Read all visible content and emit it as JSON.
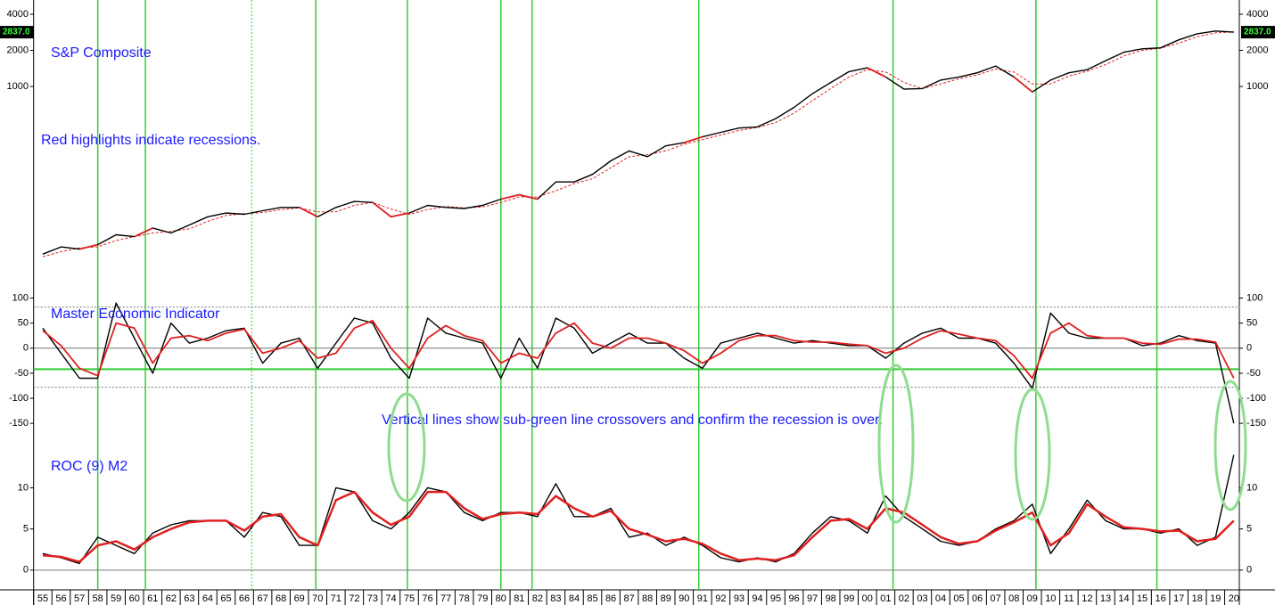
{
  "chart_data": {
    "type": "line",
    "x": [
      1955.5,
      1956.5,
      1957.5,
      1958.5,
      1959.5,
      1960.5,
      1961.5,
      1962.5,
      1963.5,
      1964.5,
      1965.5,
      1966.5,
      1967.5,
      1968.5,
      1969.5,
      1970.5,
      1971.5,
      1972.5,
      1973.5,
      1974.5,
      1975.5,
      1976.5,
      1977.5,
      1978.5,
      1979.5,
      1980.5,
      1981.5,
      1982.5,
      1983.5,
      1984.5,
      1985.5,
      1986.5,
      1987.5,
      1988.5,
      1989.5,
      1990.5,
      1991.5,
      1992.5,
      1993.5,
      1994.5,
      1995.5,
      1996.5,
      1997.5,
      1998.5,
      1999.5,
      2000.5,
      2001.5,
      2002.5,
      2003.5,
      2004.5,
      2005.5,
      2006.5,
      2007.5,
      2008.5,
      2009.5,
      2010.5,
      2011.5,
      2012.5,
      2013.5,
      2014.5,
      2015.5,
      2016.5,
      2017.5,
      2018.5,
      2019.5,
      2020.5
    ],
    "xlim": [
      1955,
      2020.8
    ],
    "xticks": [
      {
        "value": 1955,
        "label": "55"
      },
      {
        "value": 1956,
        "label": "56"
      },
      {
        "value": 1957,
        "label": "57"
      },
      {
        "value": 1958,
        "label": "58"
      },
      {
        "value": 1959,
        "label": "59"
      },
      {
        "value": 1960,
        "label": "60"
      },
      {
        "value": 1961,
        "label": "61"
      },
      {
        "value": 1962,
        "label": "62"
      },
      {
        "value": 1963,
        "label": "63"
      },
      {
        "value": 1964,
        "label": "64"
      },
      {
        "value": 1965,
        "label": "65"
      },
      {
        "value": 1966,
        "label": "66"
      },
      {
        "value": 1967,
        "label": "67"
      },
      {
        "value": 1968,
        "label": "68"
      },
      {
        "value": 1969,
        "label": "69"
      },
      {
        "value": 1970,
        "label": "70"
      },
      {
        "value": 1971,
        "label": "71"
      },
      {
        "value": 1972,
        "label": "72"
      },
      {
        "value": 1973,
        "label": "73"
      },
      {
        "value": 1974,
        "label": "74"
      },
      {
        "value": 1975,
        "label": "75"
      },
      {
        "value": 1976,
        "label": "76"
      },
      {
        "value": 1977,
        "label": "77"
      },
      {
        "value": 1978,
        "label": "78"
      },
      {
        "value": 1979,
        "label": "79"
      },
      {
        "value": 1980,
        "label": "80"
      },
      {
        "value": 1981,
        "label": "81"
      },
      {
        "value": 1982,
        "label": "82"
      },
      {
        "value": 1983,
        "label": "83"
      },
      {
        "value": 1984,
        "label": "84"
      },
      {
        "value": 1985,
        "label": "85"
      },
      {
        "value": 1986,
        "label": "86"
      },
      {
        "value": 1987,
        "label": "87"
      },
      {
        "value": 1988,
        "label": "88"
      },
      {
        "value": 1989,
        "label": "89"
      },
      {
        "value": 1990,
        "label": "90"
      },
      {
        "value": 1991,
        "label": "91"
      },
      {
        "value": 1992,
        "label": "92"
      },
      {
        "value": 1993,
        "label": "93"
      },
      {
        "value": 1994,
        "label": "94"
      },
      {
        "value": 1995,
        "label": "95"
      },
      {
        "value": 1996,
        "label": "96"
      },
      {
        "value": 1997,
        "label": "97"
      },
      {
        "value": 1998,
        "label": "98"
      },
      {
        "value": 1999,
        "label": "99"
      },
      {
        "value": 2000,
        "label": "00"
      },
      {
        "value": 2001,
        "label": "01"
      },
      {
        "value": 2002,
        "label": "02"
      },
      {
        "value": 2003,
        "label": "03"
      },
      {
        "value": 2004,
        "label": "04"
      },
      {
        "value": 2005,
        "label": "05"
      },
      {
        "value": 2006,
        "label": "06"
      },
      {
        "value": 2007,
        "label": "07"
      },
      {
        "value": 2008,
        "label": "08"
      },
      {
        "value": 2009,
        "label": "09"
      },
      {
        "value": 2010,
        "label": "10"
      },
      {
        "value": 2011,
        "label": "11"
      },
      {
        "value": 2012,
        "label": "12"
      },
      {
        "value": 2013,
        "label": "13"
      },
      {
        "value": 2014,
        "label": "14"
      },
      {
        "value": 2015,
        "label": "15"
      },
      {
        "value": 2016,
        "label": "16"
      },
      {
        "value": 2017,
        "label": "17"
      },
      {
        "value": 2018,
        "label": "18"
      },
      {
        "value": 2019,
        "label": "19"
      },
      {
        "value": 2020,
        "label": "20"
      }
    ],
    "vertical_lines": [
      1958.5,
      1961.1,
      1970.4,
      1975.4,
      1980.5,
      1982.2,
      1991.3,
      2001.9,
      2009.7,
      2016.3
    ],
    "dashed_vertical_lines": [
      1966.9
    ],
    "vertical_line_color": "#33cc33",
    "panels": [
      {
        "log": true,
        "ylim": [
          25.3,
          5260
        ],
        "yticks": [
          1000,
          2000,
          4000
        ],
        "annotations": [
          "S&P Composite",
          "Red highlights indicate recessions."
        ],
        "last_value": 2837,
        "last_value_label": "2837.0",
        "series": [
          {
            "color": "#e02020",
            "dashed": true,
            "values": [
              38,
              42,
              45,
              46,
              52,
              56,
              60,
              62,
              65,
              75,
              84,
              87,
              89,
              94,
              97,
              90,
              90,
              102,
              108,
              95,
              86,
              94,
              100,
              97,
              99,
              108,
              120,
              120,
              135,
              155,
              170,
              210,
              260,
              270,
              290,
              330,
              360,
              395,
              430,
              455,
              500,
              600,
              760,
              960,
              1200,
              1380,
              1320,
              1080,
              960,
              1050,
              1160,
              1250,
              1400,
              1320,
              1050,
              1050,
              1220,
              1340,
              1520,
              1800,
              2000,
              2080,
              2300,
              2600,
              2800,
              2850
            ]
          },
          {
            "color": "#000000",
            "values": [
              40,
              46,
              44,
              48,
              58,
              56,
              66,
              60,
              70,
              82,
              88,
              86,
              92,
              98,
              98,
              82,
              98,
              110,
              108,
              82,
              88,
              102,
              98,
              96,
              102,
              115,
              125,
              115,
              160,
              160,
              185,
              240,
              290,
              260,
              320,
              340,
              380,
              415,
              450,
              460,
              540,
              670,
              870,
              1080,
              1330,
              1430,
              1200,
              950,
              960,
              1130,
              1200,
              1300,
              1480,
              1200,
              900,
              1130,
              1300,
              1380,
              1640,
              1930,
              2060,
              2100,
              2450,
              2750,
              2900,
              2837
            ]
          },
          {
            "color": "#e02020",
            "values": [
              null,
              null,
              44,
              48,
              null,
              56,
              66,
              null,
              null,
              null,
              null,
              null,
              null,
              null,
              98,
              82,
              null,
              null,
              108,
              82,
              88,
              null,
              null,
              null,
              null,
              115,
              125,
              115,
              null,
              null,
              null,
              null,
              null,
              null,
              null,
              340,
              380,
              null,
              null,
              null,
              null,
              null,
              null,
              null,
              null,
              1430,
              1200,
              null,
              null,
              null,
              null,
              null,
              null,
              1200,
              900,
              null,
              null,
              null,
              null,
              null,
              null,
              null,
              null,
              null,
              null,
              null
            ]
          }
        ]
      },
      {
        "log": false,
        "ylim": [
          -180,
          140
        ],
        "yticks": [
          100,
          50,
          0,
          -50,
          -100,
          -150
        ],
        "annotations": [
          "Master Economic Indicator",
          "Vertical lines show sub-green line crossovers and confirm the recession is over."
        ],
        "reference_lines": [
          {
            "value": 82,
            "color": "#777777",
            "dashed": true
          },
          {
            "value": -78,
            "color": "#777777",
            "dashed": true
          },
          {
            "value": 0,
            "color": "#777777"
          },
          {
            "value": -42,
            "color": "#33cc33"
          }
        ],
        "series": [
          {
            "color": "#000000",
            "values": [
              40,
              -10,
              -60,
              -60,
              90,
              20,
              -50,
              50,
              10,
              20,
              35,
              40,
              -30,
              10,
              20,
              -40,
              10,
              60,
              50,
              -20,
              -60,
              60,
              30,
              20,
              10,
              -60,
              20,
              -40,
              60,
              40,
              -10,
              10,
              30,
              10,
              10,
              -20,
              -40,
              10,
              20,
              30,
              20,
              10,
              15,
              10,
              5,
              5,
              -20,
              10,
              30,
              40,
              20,
              20,
              10,
              -30,
              -80,
              70,
              30,
              20,
              20,
              20,
              5,
              10,
              25,
              15,
              10,
              -150
            ]
          },
          {
            "color": "#e02020",
            "values": [
              35,
              5,
              -40,
              -55,
              50,
              40,
              -30,
              20,
              25,
              15,
              30,
              38,
              -10,
              0,
              15,
              -20,
              -10,
              40,
              55,
              0,
              -40,
              20,
              45,
              25,
              15,
              -30,
              -10,
              -20,
              30,
              50,
              10,
              0,
              20,
              20,
              10,
              -5,
              -30,
              -10,
              15,
              25,
              25,
              15,
              12,
              12,
              8,
              5,
              -10,
              0,
              20,
              35,
              28,
              20,
              15,
              -15,
              -60,
              30,
              50,
              25,
              20,
              20,
              10,
              8,
              18,
              18,
              12,
              -60
            ]
          }
        ]
      },
      {
        "log": false,
        "ylim": [
          -2.4,
          16
        ],
        "yticks": [
          10,
          5,
          0
        ],
        "annotations": [
          "ROC (9) M2"
        ],
        "reference_lines": [
          {
            "value": 0,
            "color": "#777777"
          }
        ],
        "series": [
          {
            "color": "#000000",
            "values": [
              2,
              1.5,
              0.8,
              4,
              3,
              2,
              4.5,
              5.5,
              6,
              6,
              6,
              4,
              7,
              6.5,
              3,
              3,
              10,
              9.5,
              6,
              5,
              7,
              10,
              9.5,
              7,
              6,
              7,
              7,
              6.5,
              10.5,
              6.5,
              6.5,
              7.5,
              4,
              4.5,
              3,
              4,
              3,
              1.5,
              1,
              1.5,
              1,
              2,
              4.5,
              6.5,
              6,
              4.5,
              9,
              6.5,
              5,
              3.5,
              3,
              3.5,
              5,
              6,
              8,
              2,
              5,
              8.5,
              6,
              5,
              5,
              4.5,
              5,
              3,
              4,
              14
            ]
          },
          {
            "color": "#e02020",
            "width": 2.5,
            "values": [
              1.8,
              1.6,
              1,
              3,
              3.5,
              2.5,
              4,
              5,
              5.8,
              6,
              6,
              4.8,
              6.5,
              6.8,
              4,
              3,
              8.5,
              9.5,
              7,
              5.5,
              6.5,
              9.5,
              9.5,
              7.5,
              6.2,
              6.8,
              7,
              6.8,
              9,
              7.5,
              6.5,
              7.2,
              5,
              4.3,
              3.5,
              3.8,
              3.2,
              2,
              1.2,
              1.4,
              1.2,
              1.8,
              4,
              6,
              6.2,
              5,
              7.5,
              7,
              5.5,
              4,
              3.2,
              3.5,
              4.8,
              5.8,
              7,
              3,
              4.5,
              8,
              6.5,
              5.2,
              5,
              4.7,
              4.8,
              3.5,
              3.8,
              6
            ]
          }
        ]
      }
    ]
  }
}
